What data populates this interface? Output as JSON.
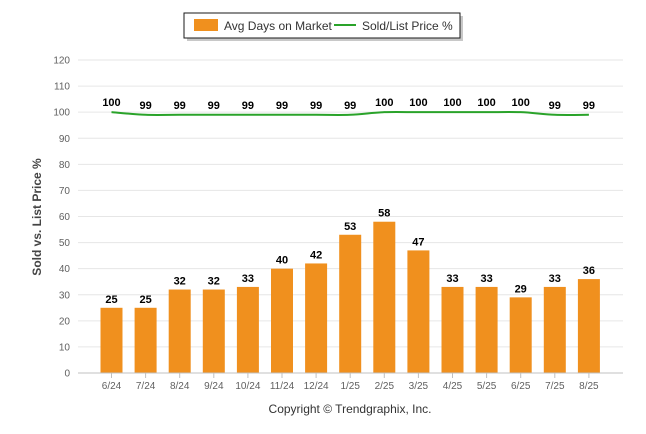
{
  "chart_data": {
    "type": "bar",
    "ylabel": "Sold vs. List Price %",
    "ylim": [
      0,
      120
    ],
    "yticks": [
      0,
      10,
      20,
      30,
      40,
      50,
      60,
      70,
      80,
      90,
      100,
      110,
      120
    ],
    "grid": true,
    "legend_position": "top-center",
    "categories": [
      "6/24",
      "7/24",
      "8/24",
      "9/24",
      "10/24",
      "11/24",
      "12/24",
      "1/25",
      "2/25",
      "3/25",
      "4/25",
      "5/25",
      "6/25",
      "7/25",
      "8/25"
    ],
    "series": [
      {
        "name": "Avg Days on Market",
        "type": "bar",
        "color": "#f0901e",
        "values": [
          25,
          25,
          32,
          32,
          33,
          40,
          42,
          53,
          58,
          47,
          33,
          33,
          29,
          33,
          36
        ]
      },
      {
        "name": "Sold/List Price %",
        "type": "line",
        "color": "#2aa32a",
        "values": [
          100,
          99,
          99,
          99,
          99,
          99,
          99,
          99,
          100,
          100,
          100,
          100,
          100,
          99,
          99
        ]
      }
    ]
  },
  "footer": {
    "copyright": "Copyright © Trendgraphix, Inc."
  }
}
